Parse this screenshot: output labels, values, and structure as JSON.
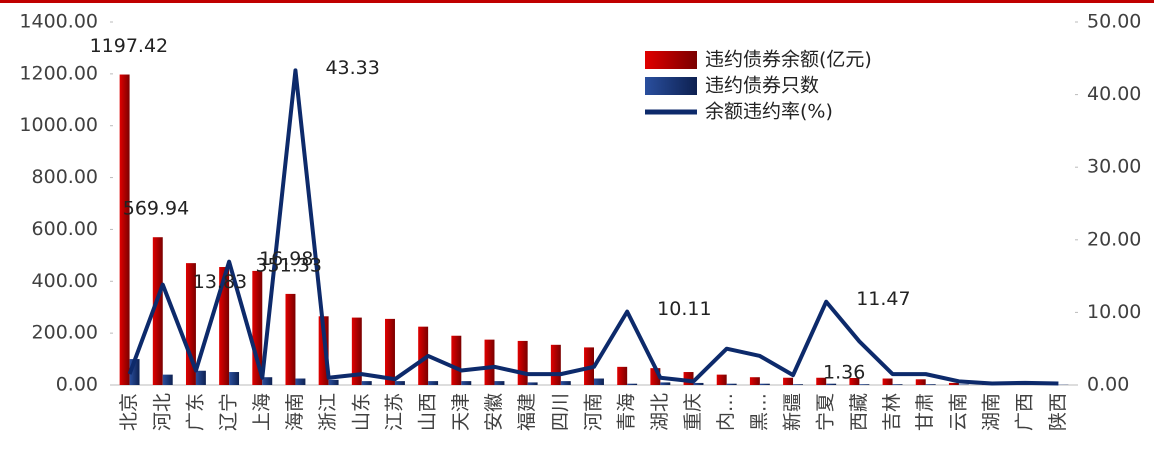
{
  "chart_data": {
    "type": "bar-line",
    "categories": [
      "北京",
      "河北",
      "广东",
      "辽宁",
      "上海",
      "海南",
      "浙江",
      "山东",
      "江苏",
      "山西",
      "天津",
      "安徽",
      "福建",
      "四川",
      "河南",
      "青海",
      "湖北",
      "重庆",
      "内…",
      "黑…",
      "新疆",
      "宁夏",
      "西藏",
      "吉林",
      "甘肃",
      "云南",
      "湖南",
      "广西",
      "陕西"
    ],
    "series": [
      {
        "name": "违约债券余额(亿元)",
        "color": "#d40000",
        "type": "bar",
        "values": [
          1197.42,
          569.94,
          470,
          455,
          440,
          351.33,
          265,
          260,
          255,
          225,
          190,
          175,
          170,
          155,
          145,
          70,
          65,
          50,
          40,
          30,
          28,
          28,
          27,
          25,
          22,
          8,
          5,
          3,
          2
        ],
        "value_labels": [
          "1197.42",
          "569.94",
          null,
          null,
          null,
          "351.33",
          null,
          null,
          null,
          null,
          null,
          null,
          null,
          null,
          null,
          null,
          null,
          null,
          null,
          null,
          null,
          null,
          null,
          null,
          null,
          null,
          null,
          null,
          null
        ]
      },
      {
        "name": "违约债券只数",
        "color": "#1f3a7a",
        "type": "bar",
        "values": [
          100,
          40,
          55,
          50,
          30,
          25,
          20,
          15,
          15,
          15,
          15,
          15,
          10,
          15,
          25,
          5,
          10,
          8,
          5,
          5,
          3,
          5,
          3,
          3,
          3,
          2,
          2,
          1,
          1
        ]
      },
      {
        "name": "余额违约率(%)",
        "color": "#0d2a6b",
        "type": "line",
        "axis": "y2",
        "values": [
          1.5,
          13.83,
          2,
          16.98,
          1,
          43.33,
          1,
          1.5,
          0.8,
          4,
          2,
          2.5,
          1.5,
          1.5,
          2.5,
          10.11,
          1,
          0.5,
          5,
          4,
          1.36,
          11.47,
          6,
          1.5,
          1.5,
          0.5,
          0.2,
          0.3,
          0.2
        ],
        "value_labels": [
          null,
          "13.83",
          null,
          "16.98",
          null,
          "43.33",
          null,
          null,
          null,
          null,
          null,
          null,
          null,
          null,
          null,
          "10.11",
          null,
          null,
          null,
          null,
          "1.36",
          "11.47",
          null,
          null,
          null,
          null,
          null,
          null,
          null
        ]
      }
    ],
    "ylim": [
      0,
      1400
    ],
    "yticks": [
      {
        "value": 0,
        "label": "0.00"
      },
      {
        "value": 200,
        "label": "200.00"
      },
      {
        "value": 400,
        "label": "400.00"
      },
      {
        "value": 600,
        "label": "600.00"
      },
      {
        "value": 800,
        "label": "800.00"
      },
      {
        "value": 1000,
        "label": "1000.00"
      },
      {
        "value": 1200,
        "label": "1200.00"
      },
      {
        "value": 1400,
        "label": "1400.00"
      }
    ],
    "y2lim": [
      0,
      50
    ],
    "y2ticks": [
      {
        "value": 0,
        "label": "0.00"
      },
      {
        "value": 10,
        "label": "10.00"
      },
      {
        "value": 20,
        "label": "20.00"
      },
      {
        "value": 30,
        "label": "30.00"
      },
      {
        "value": 40,
        "label": "40.00"
      },
      {
        "value": 50,
        "label": "50.00"
      }
    ],
    "legend": "top-right"
  }
}
